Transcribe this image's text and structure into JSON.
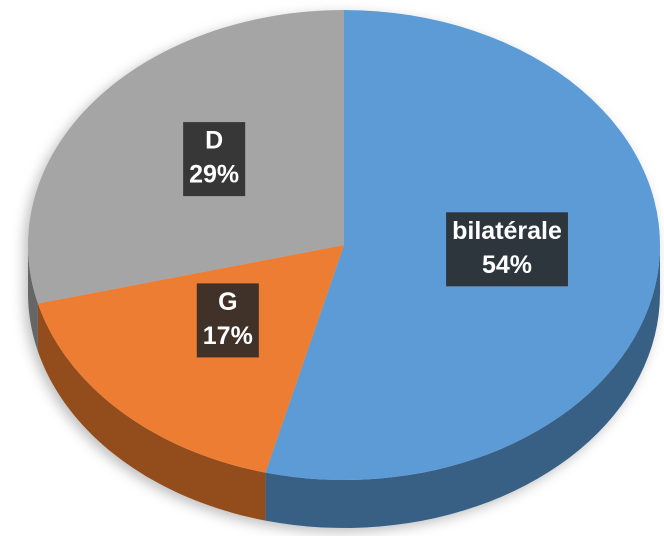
{
  "chart_data": {
    "type": "pie",
    "categories": [
      "bilatérale",
      "G",
      "D"
    ],
    "values": [
      54,
      17,
      29
    ],
    "value_labels": [
      "54%",
      "17%",
      "29%"
    ],
    "colors": [
      "#5b9bd5",
      "#ed7d31",
      "#a5a5a5"
    ]
  }
}
